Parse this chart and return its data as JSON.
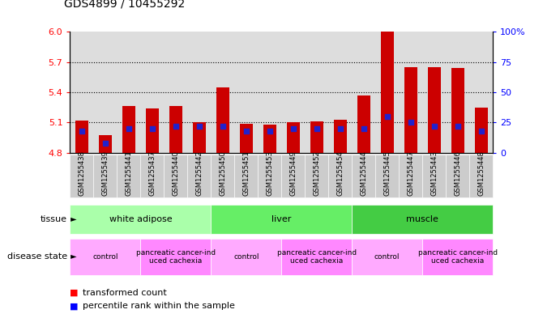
{
  "title": "GDS4899 / 10455292",
  "samples": [
    "GSM1255438",
    "GSM1255439",
    "GSM1255441",
    "GSM1255437",
    "GSM1255440",
    "GSM1255442",
    "GSM1255450",
    "GSM1255451",
    "GSM1255453",
    "GSM1255449",
    "GSM1255452",
    "GSM1255454",
    "GSM1255444",
    "GSM1255445",
    "GSM1255447",
    "GSM1255443",
    "GSM1255446",
    "GSM1255448"
  ],
  "transformed_counts": [
    5.12,
    4.97,
    5.26,
    5.24,
    5.26,
    5.1,
    5.45,
    5.09,
    5.08,
    5.1,
    5.11,
    5.13,
    5.37,
    6.0,
    5.65,
    5.65,
    5.64,
    5.25
  ],
  "percentile_ranks": [
    18,
    8,
    20,
    20,
    22,
    22,
    22,
    18,
    18,
    20,
    20,
    20,
    20,
    30,
    25,
    22,
    22,
    18
  ],
  "ylim_left": [
    4.8,
    6.0
  ],
  "ylim_right": [
    0,
    100
  ],
  "yticks_left": [
    4.8,
    5.1,
    5.4,
    5.7,
    6.0
  ],
  "yticks_right": [
    0,
    25,
    50,
    75,
    100
  ],
  "hlines": [
    5.1,
    5.4,
    5.7
  ],
  "bar_color": "#cc0000",
  "dot_color": "#2222cc",
  "bar_bottom": 4.8,
  "tissue_groups": [
    {
      "label": "white adipose",
      "start": 0,
      "end": 6,
      "color": "#aaffaa"
    },
    {
      "label": "liver",
      "start": 6,
      "end": 12,
      "color": "#66ee66"
    },
    {
      "label": "muscle",
      "start": 12,
      "end": 18,
      "color": "#44cc44"
    }
  ],
  "disease_groups": [
    {
      "label": "control",
      "start": 0,
      "end": 3,
      "color": "#ffaaff"
    },
    {
      "label": "pancreatic cancer-ind\nuced cachexia",
      "start": 3,
      "end": 6,
      "color": "#ff88ff"
    },
    {
      "label": "control",
      "start": 6,
      "end": 9,
      "color": "#ffaaff"
    },
    {
      "label": "pancreatic cancer-ind\nuced cachexia",
      "start": 9,
      "end": 12,
      "color": "#ff88ff"
    },
    {
      "label": "control",
      "start": 12,
      "end": 15,
      "color": "#ffaaff"
    },
    {
      "label": "pancreatic cancer-ind\nuced cachexia",
      "start": 15,
      "end": 18,
      "color": "#ff88ff"
    }
  ],
  "chart_bg_color": "#dddddd",
  "fig_bg_color": "#ffffff"
}
